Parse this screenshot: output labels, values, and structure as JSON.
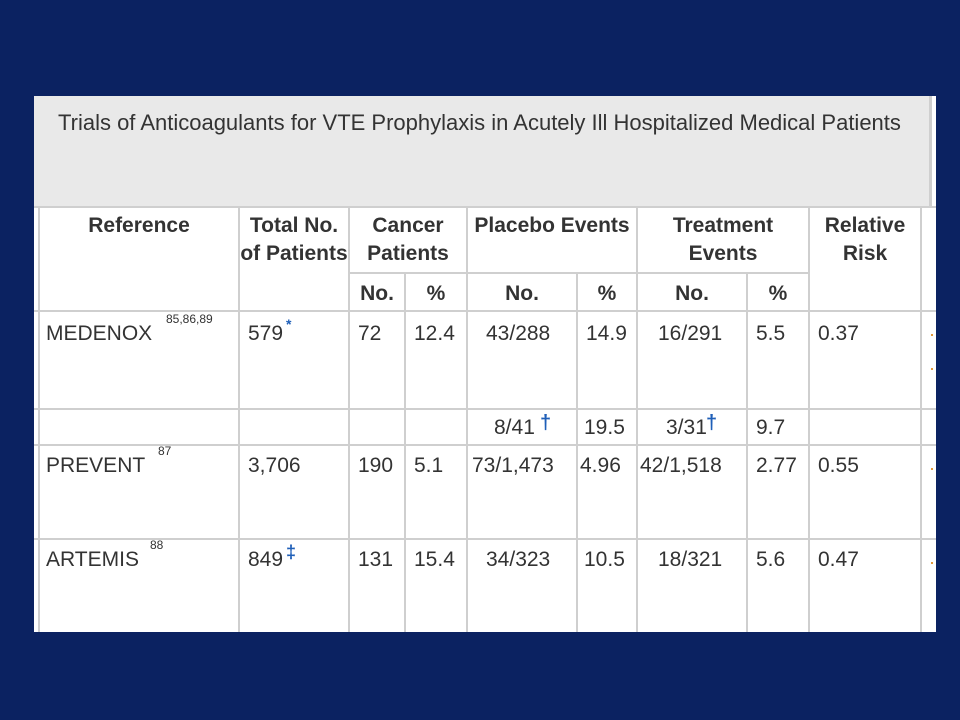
{
  "title": "Trials of Anticoagulants for VTE Prophylaxis in Acutely Ill Hospitalized Medical Patients",
  "headers": {
    "reference": "Reference",
    "total": "Total No. of Patients",
    "cancer": "Cancer Patients",
    "placebo": "Placebo Events",
    "treatment": "Treatment Events",
    "rr": "Relative Risk",
    "no": "No.",
    "pct": "%"
  },
  "rows": [
    {
      "ref": "MEDENOX",
      "ref_sup": "85,86,89",
      "total": "579",
      "total_mark": "*",
      "cancer_no": "72",
      "cancer_pct": "12.4",
      "placebo_no": "43/288",
      "placebo_pct": "14.9",
      "treat_no": "16/291",
      "treat_pct": "5.5",
      "rr": "0.37"
    },
    {
      "ref": "",
      "ref_sup": "",
      "total": "",
      "total_mark": "",
      "cancer_no": "",
      "cancer_pct": "",
      "placebo_no": "8/41",
      "placebo_mark": "†",
      "placebo_pct": "19.5",
      "treat_no": "3/31",
      "treat_mark": "†",
      "treat_pct": "9.7",
      "rr": ""
    },
    {
      "ref": "PREVENT",
      "ref_sup": "87",
      "total": "3,706",
      "total_mark": "",
      "cancer_no": "190",
      "cancer_pct": "5.1",
      "placebo_no": "73/1,473",
      "placebo_pct": "4.96",
      "treat_no": "42/1,518",
      "treat_pct": "2.77",
      "rr": "0.55"
    },
    {
      "ref": "ARTEMIS",
      "ref_sup": "88",
      "total": "849",
      "total_mark": "‡",
      "cancer_no": "131",
      "cancer_pct": "15.4",
      "placebo_no": "34/323",
      "placebo_pct": "10.5",
      "treat_no": "18/321",
      "treat_pct": "5.6",
      "rr": "0.47"
    }
  ]
}
